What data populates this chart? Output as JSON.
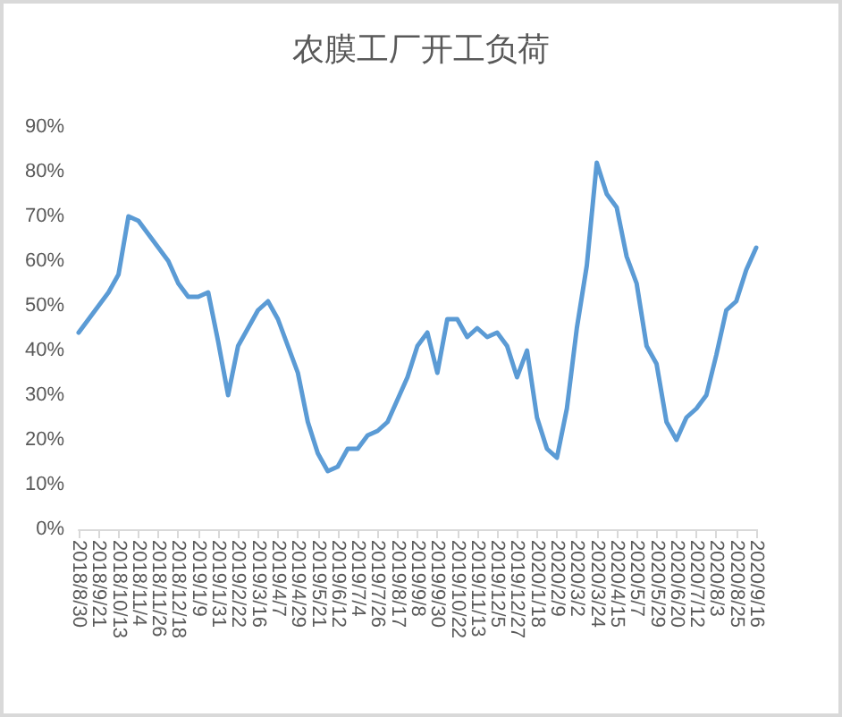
{
  "chart_data": {
    "type": "line",
    "title": "农膜工厂开工负荷",
    "categories": [
      "2018/8/30",
      null,
      "2018/9/21",
      null,
      "2018/10/13",
      null,
      "2018/11/4",
      null,
      "2018/11/26",
      null,
      "2018/12/18",
      null,
      "2019/1/9",
      null,
      "2019/1/31",
      null,
      "2019/2/22",
      null,
      "2019/3/16",
      null,
      "2019/4/7",
      null,
      "2019/4/29",
      null,
      "2019/5/21",
      null,
      "2019/6/12",
      null,
      "2019/7/4",
      null,
      "2019/7/26",
      null,
      "2019/8/17",
      null,
      "2019/9/8",
      null,
      "2019/9/30",
      null,
      "2019/10/22",
      null,
      "2019/11/13",
      null,
      "2019/12/5",
      null,
      "2019/12/27",
      null,
      "2020/1/18",
      null,
      "2020/2/9",
      null,
      "2020/3/2",
      null,
      "2020/3/24",
      null,
      "2020/4/15",
      null,
      "2020/5/7",
      null,
      "2020/5/29",
      null,
      "2020/6/20",
      null,
      "2020/7/12",
      null,
      "2020/8/3",
      null,
      "2020/8/25",
      null,
      "2020/9/16"
    ],
    "series": [
      {
        "color": "#5b9bd5",
        "values": [
          44,
          47,
          50,
          53,
          57,
          70,
          69,
          66,
          63,
          60,
          55,
          52,
          52,
          53,
          42,
          30,
          41,
          45,
          49,
          51,
          47,
          41,
          35,
          24,
          17,
          13,
          14,
          18,
          18,
          21,
          22,
          24,
          29,
          34,
          41,
          44,
          35,
          47,
          47,
          43,
          45,
          43,
          44,
          41,
          34,
          40,
          25,
          18,
          16,
          27,
          45,
          59,
          82,
          75,
          72,
          61,
          55,
          41,
          37,
          24,
          20,
          25,
          27,
          30,
          39,
          49,
          51,
          58,
          63
        ]
      }
    ],
    "ylim": [
      0,
      90
    ],
    "yticks": [
      {
        "value": 0,
        "label": "0%"
      },
      {
        "value": 10,
        "label": "10%"
      },
      {
        "value": 20,
        "label": "20%"
      },
      {
        "value": 30,
        "label": "30%"
      },
      {
        "value": 40,
        "label": "40%"
      },
      {
        "value": 50,
        "label": "50%"
      },
      {
        "value": 60,
        "label": "60%"
      },
      {
        "value": 70,
        "label": "70%"
      },
      {
        "value": 80,
        "label": "80%"
      },
      {
        "value": 90,
        "label": "90%"
      }
    ],
    "grid": false,
    "marker": "none",
    "line_style": "solid"
  }
}
